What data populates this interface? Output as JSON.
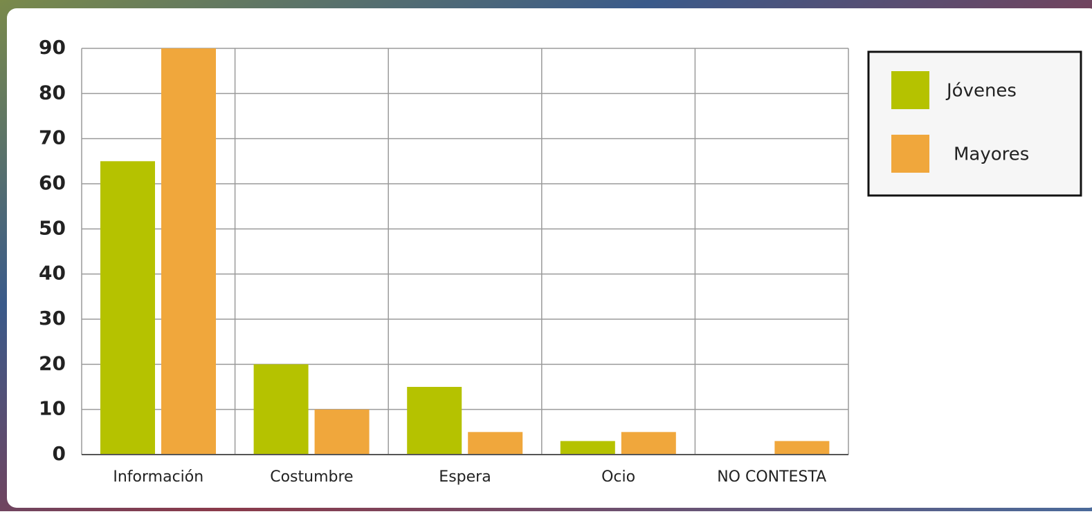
{
  "chart_data": {
    "type": "bar",
    "categories": [
      "Información",
      "Costumbre",
      "Espera",
      "Ocio",
      "NO CONTESTA"
    ],
    "series": [
      {
        "name": "Jóvenes",
        "color": "#b5c200",
        "values": [
          65,
          20,
          15,
          3,
          0
        ]
      },
      {
        "name": "Mayores",
        "color": "#f0a73c",
        "values": [
          90,
          10,
          5,
          5,
          3
        ]
      }
    ],
    "ylim": [
      0,
      90
    ],
    "yticks": [
      0,
      10,
      20,
      30,
      40,
      50,
      60,
      70,
      80,
      90
    ],
    "grid": true
  }
}
